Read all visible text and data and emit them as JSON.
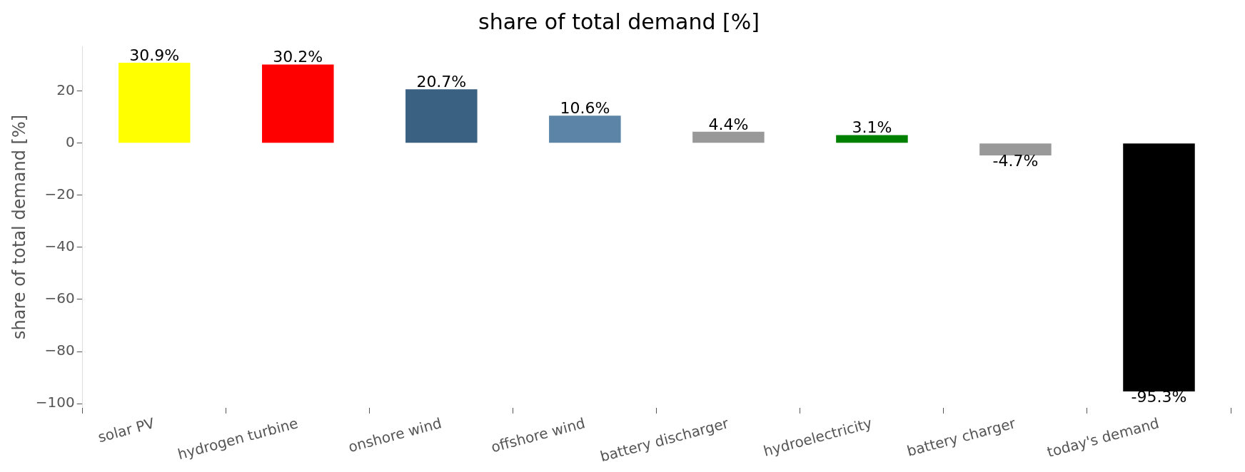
{
  "chart_data": {
    "type": "bar",
    "title": "share of total demand [%]",
    "ylabel": "share of total demand [%]",
    "categories": [
      "solar PV",
      "hydrogen turbine",
      "onshore wind",
      "offshore wind",
      "battery discharger",
      "hydroelectricity",
      "battery charger",
      "today's demand"
    ],
    "values": [
      30.9,
      30.2,
      20.7,
      10.6,
      4.4,
      3.1,
      -4.7,
      -95.3
    ],
    "colors": [
      "#ffff00",
      "#ff0000",
      "#3b6182",
      "#5b84a6",
      "#999999",
      "#008000",
      "#999999",
      "#000000"
    ],
    "value_labels": [
      "30.9%",
      "30.2%",
      "20.7%",
      "10.6%",
      "4.4%",
      "3.1%",
      "-4.7%",
      "-95.3%"
    ],
    "ylim": [
      -101.6,
      37.2
    ],
    "yticks": [
      {
        "value": -100,
        "label": "−100"
      },
      {
        "value": -80,
        "label": "−80"
      },
      {
        "value": -60,
        "label": "−60"
      },
      {
        "value": -40,
        "label": "−40"
      },
      {
        "value": -20,
        "label": "−20"
      },
      0,
      20
    ],
    "grid": false,
    "legend": false
  }
}
